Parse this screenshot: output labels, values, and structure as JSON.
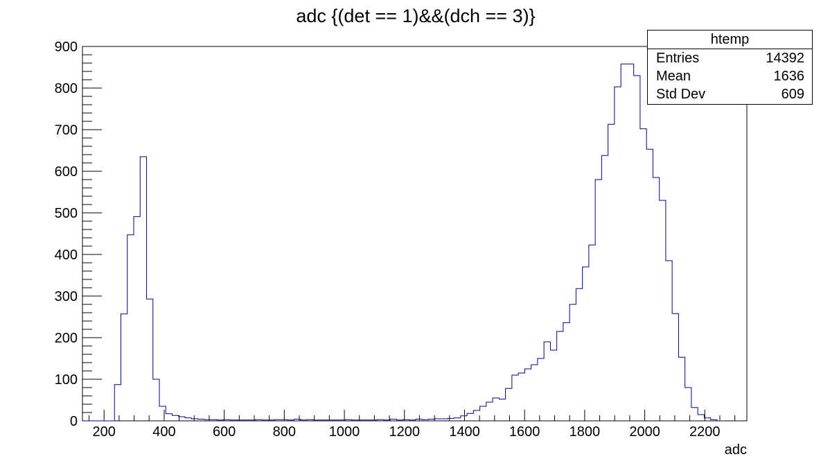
{
  "chart_data": {
    "type": "bar",
    "title": "adc {(det == 1)&&(dch == 3)}",
    "xlabel": "adc",
    "ylabel": "",
    "xlim": [
      128,
      2340
    ],
    "ylim": [
      0,
      900
    ],
    "bin_width": 21.34,
    "x_ticks": [
      200,
      400,
      600,
      800,
      1000,
      1200,
      1400,
      1600,
      1800,
      2000,
      2200
    ],
    "y_ticks": [
      0,
      100,
      200,
      300,
      400,
      500,
      600,
      700,
      800,
      900
    ],
    "series": [
      {
        "name": "htemp",
        "color": "#00008b",
        "bin_low_edges": [
          128,
          149.34,
          170.68,
          192.02,
          213.36,
          234.7,
          256.04,
          277.38,
          298.72,
          320.06,
          341.4,
          362.74,
          384.08,
          405.42,
          426.76,
          448.1,
          469.44,
          490.78,
          512.12,
          533.46,
          554.8,
          576.14,
          597.48,
          618.82,
          640.16,
          661.5,
          682.84,
          704.18,
          725.52,
          746.86,
          768.2,
          789.54,
          810.88,
          832.22,
          853.56,
          874.9,
          896.24,
          917.58,
          938.92,
          960.26,
          981.6,
          1002.94,
          1024.28,
          1045.62,
          1066.96,
          1088.3,
          1109.64,
          1130.98,
          1152.32,
          1173.66,
          1195.0,
          1216.34,
          1237.68,
          1259.02,
          1280.36,
          1301.7,
          1323.04,
          1344.38,
          1365.72,
          1387.06,
          1408.4,
          1429.74,
          1451.08,
          1472.42,
          1493.76,
          1515.1,
          1536.44,
          1557.78,
          1579.12,
          1600.46,
          1621.8,
          1643.14,
          1664.48,
          1685.82,
          1707.16,
          1728.5,
          1749.84,
          1771.18,
          1792.52,
          1813.86,
          1835.2,
          1856.54,
          1877.88,
          1899.22,
          1920.56,
          1941.9,
          1963.24,
          1984.58,
          2005.92,
          2027.26,
          2048.6,
          2069.94,
          2091.28,
          2112.62,
          2133.96,
          2155.3,
          2176.64,
          2197.98,
          2219.32,
          2240.66
        ],
        "values": [
          0,
          0,
          0,
          0,
          0,
          87,
          257,
          447,
          491,
          635,
          293,
          100,
          35,
          17,
          13,
          10,
          7,
          5,
          4,
          3,
          3,
          2,
          3,
          2,
          2,
          2,
          2,
          3,
          2,
          2,
          3,
          3,
          2,
          4,
          2,
          3,
          2,
          2,
          2,
          2,
          2,
          3,
          2,
          2,
          2,
          2,
          3,
          2,
          4,
          2,
          3,
          2,
          4,
          3,
          4,
          5,
          5,
          6,
          7,
          12,
          18,
          25,
          35,
          45,
          55,
          52,
          78,
          110,
          115,
          125,
          135,
          150,
          190,
          170,
          215,
          236,
          280,
          318,
          370,
          423,
          580,
          638,
          713,
          803,
          858,
          858,
          830,
          702,
          653,
          585,
          530,
          385,
          258,
          153,
          80,
          32,
          15,
          7,
          3,
          0
        ]
      }
    ]
  },
  "stats": {
    "title": "htemp",
    "rows": [
      {
        "label": "Entries",
        "value": "14392"
      },
      {
        "label": "Mean",
        "value": "1636"
      },
      {
        "label": "Std Dev",
        "value": "609"
      }
    ]
  }
}
